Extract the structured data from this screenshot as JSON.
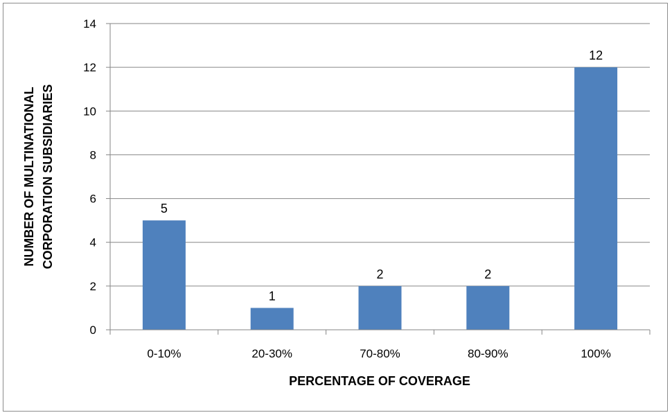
{
  "chart_data": {
    "type": "bar",
    "categories": [
      "0-10%",
      "20-30%",
      "70-80%",
      "80-90%",
      "100%"
    ],
    "values": [
      5,
      1,
      2,
      2,
      12
    ],
    "data_labels": [
      "5",
      "1",
      "2",
      "2",
      "12"
    ],
    "title": "",
    "xlabel": "PERCENTAGE OF COVERAGE",
    "ylabel_lines": [
      "NUMBER OF MULTINATIONAL",
      "CORPORATION SUBSIDIARIES"
    ],
    "ylim": [
      0,
      14
    ],
    "yticks": [
      0,
      2,
      4,
      6,
      8,
      10,
      12,
      14
    ],
    "ytick_labels": [
      "0",
      "2",
      "4",
      "6",
      "8",
      "10",
      "12",
      "14"
    ],
    "grid": true,
    "bar_color": "#4f81bd",
    "grid_color": "#868686"
  }
}
